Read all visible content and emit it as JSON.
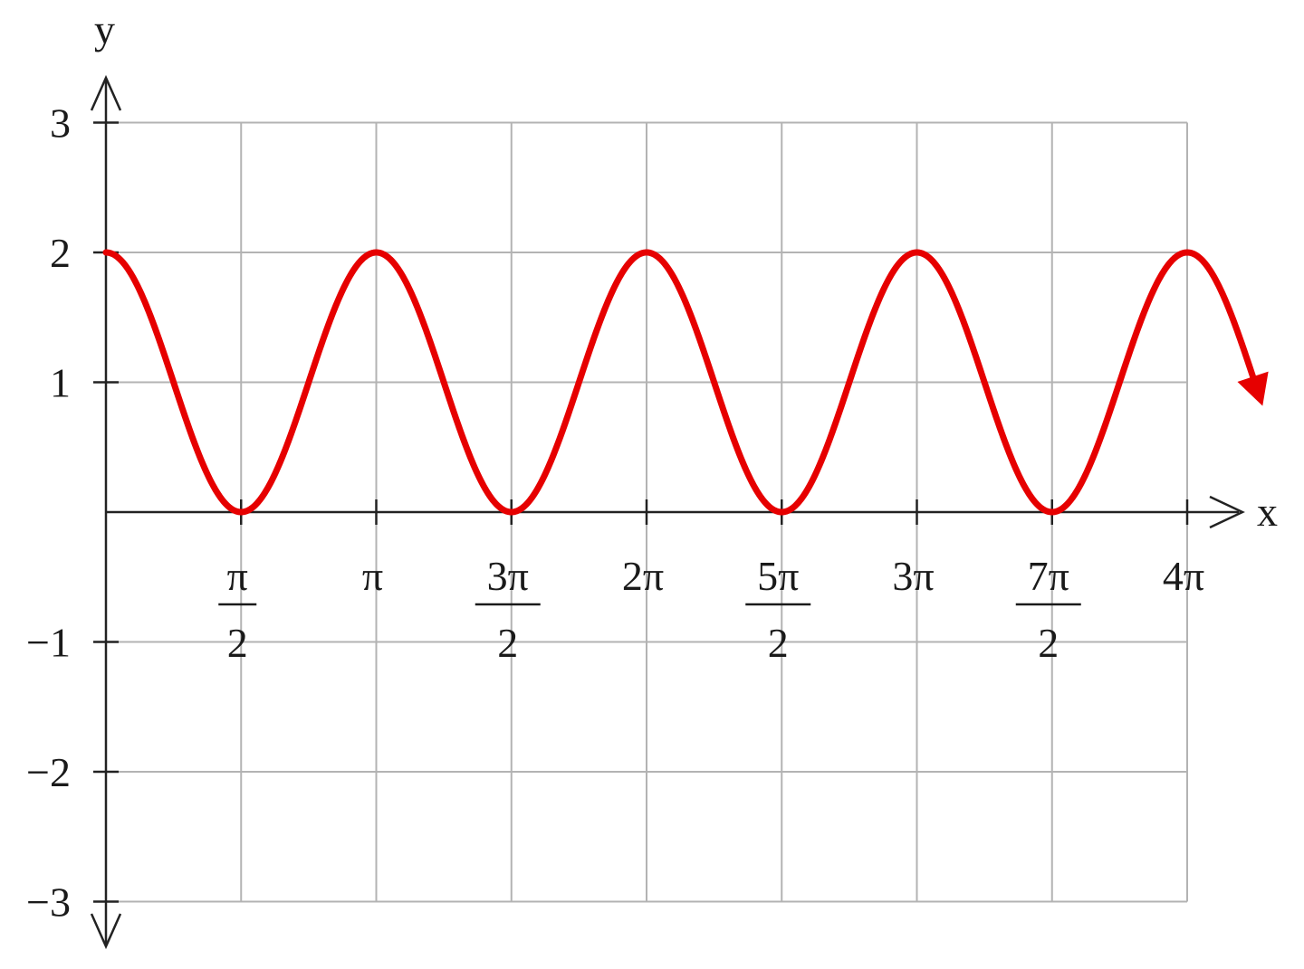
{
  "chart_data": {
    "type": "line",
    "xlabel": "x",
    "ylabel": "y",
    "xlim": [
      0,
      12.566
    ],
    "ylim": [
      -3,
      3
    ],
    "y_ticks": [
      {
        "value": 3,
        "label": "3"
      },
      {
        "value": 2,
        "label": "2"
      },
      {
        "value": 1,
        "label": "1"
      },
      {
        "value": -1,
        "label": "−1"
      },
      {
        "value": -2,
        "label": "−2"
      },
      {
        "value": -3,
        "label": "−3"
      }
    ],
    "x_ticks": [
      {
        "value": 1.5708,
        "num": "π",
        "den": "2"
      },
      {
        "value": 3.1416,
        "num": "π",
        "den": ""
      },
      {
        "value": 4.7124,
        "num": "3π",
        "den": "2"
      },
      {
        "value": 6.2832,
        "num": "2π",
        "den": ""
      },
      {
        "value": 7.854,
        "num": "5π",
        "den": "2"
      },
      {
        "value": 9.4248,
        "num": "3π",
        "den": ""
      },
      {
        "value": 10.9956,
        "num": "7π",
        "den": "2"
      },
      {
        "value": 12.5664,
        "num": "4π",
        "den": ""
      }
    ],
    "grid": true,
    "series": [
      {
        "color": "#e60000",
        "function": "1 + cos(2x)",
        "x_range": [
          0,
          13.35
        ]
      }
    ],
    "axis_color": "#222222",
    "grid_color": "#b3b3b3"
  }
}
